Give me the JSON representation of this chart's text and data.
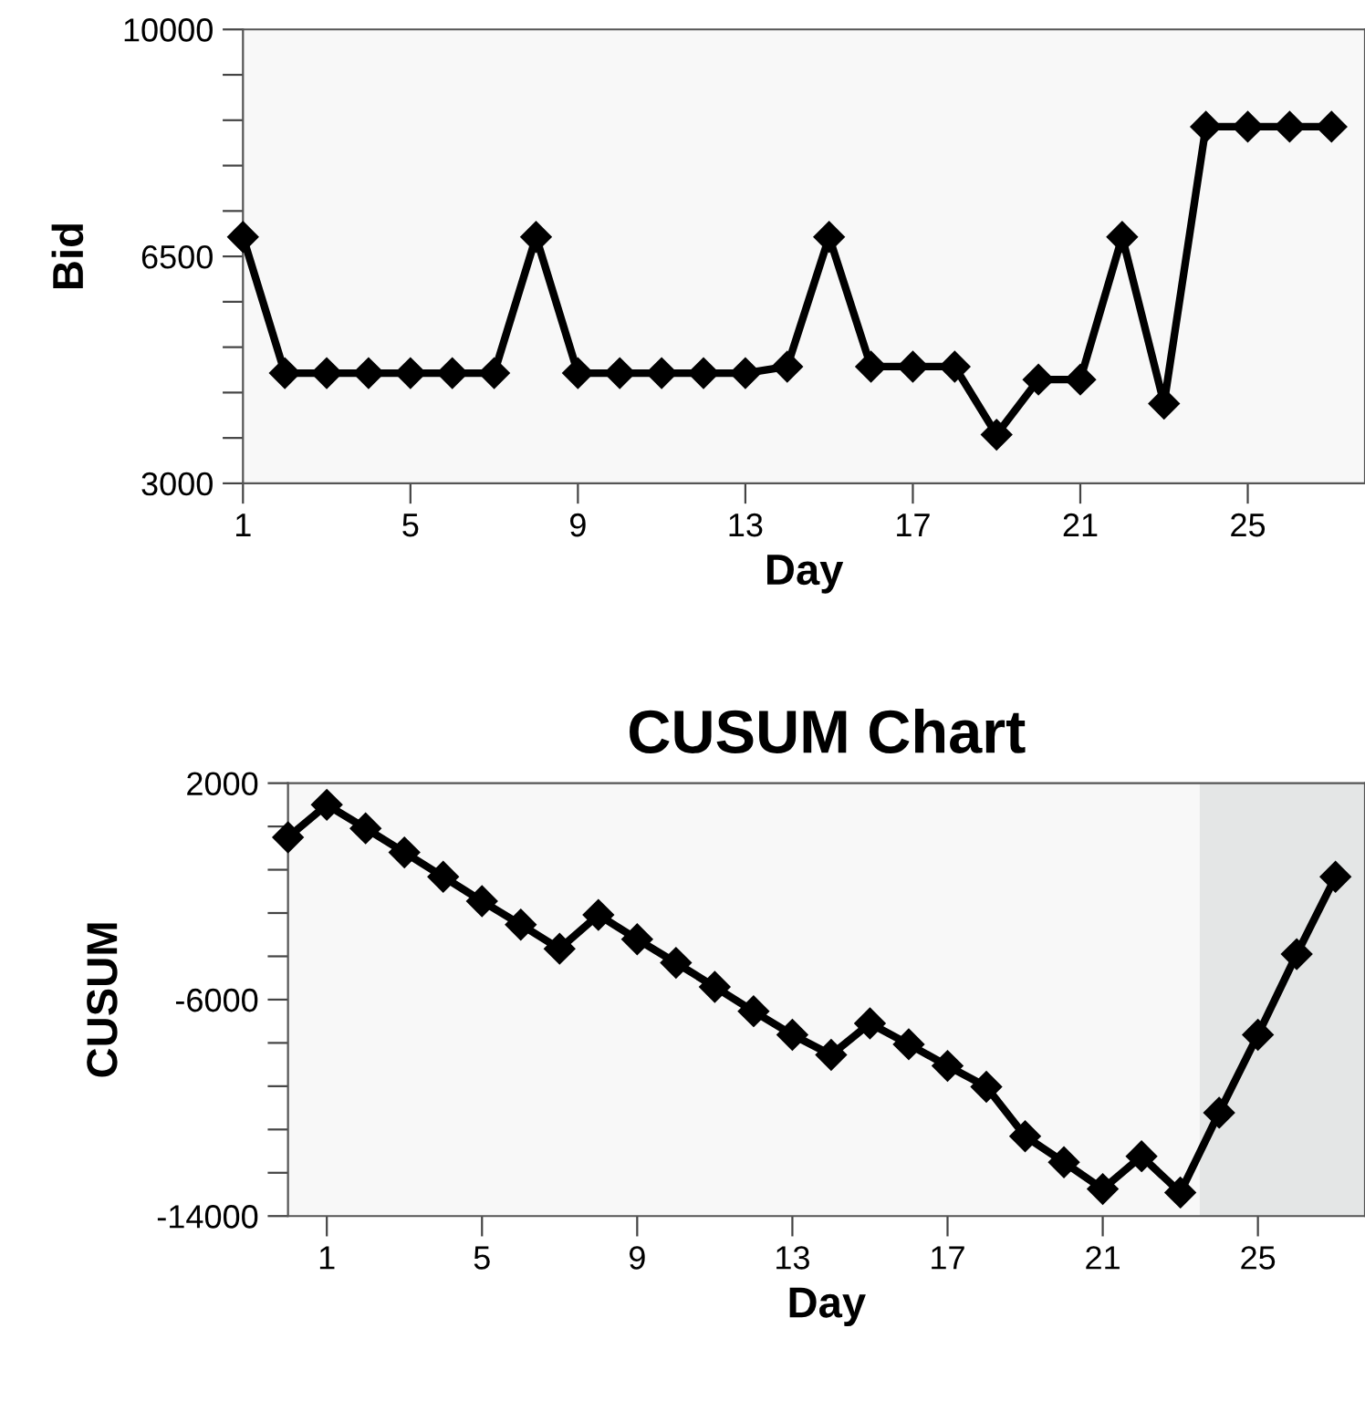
{
  "chart_data": [
    {
      "type": "line",
      "xlabel": "Day",
      "ylabel": "Bid",
      "x": [
        1,
        2,
        3,
        4,
        5,
        6,
        7,
        8,
        9,
        10,
        11,
        12,
        13,
        14,
        15,
        16,
        17,
        18,
        19,
        20,
        21,
        22,
        23,
        24,
        25,
        26,
        27
      ],
      "series": [
        {
          "color": "#000000",
          "values": [
            6800,
            4700,
            4700,
            4700,
            4700,
            4700,
            4700,
            6800,
            4700,
            4700,
            4700,
            4700,
            4700,
            4800,
            6800,
            4800,
            4800,
            4800,
            3750,
            4600,
            4600,
            6800,
            4230,
            8500,
            8500,
            8500,
            8500
          ]
        }
      ],
      "xlim": [
        1,
        27.8
      ],
      "xticks": [
        1,
        5,
        9,
        13,
        17,
        21,
        25
      ],
      "ylim": [
        3000,
        10000
      ],
      "yticks": [
        3000,
        {
          "value": 3700,
          "label": null
        },
        {
          "value": 4400,
          "label": null
        },
        {
          "value": 5100,
          "label": null
        },
        {
          "value": 5800,
          "label": null
        },
        6500,
        {
          "value": 7200,
          "label": null
        },
        {
          "value": 7900,
          "label": null
        },
        {
          "value": 8600,
          "label": null
        },
        {
          "value": 9300,
          "label": null
        },
        10000
      ],
      "marker": "diamond",
      "line_style": "solid",
      "grid": false,
      "legend": false
    },
    {
      "type": "line",
      "title": "CUSUM Chart",
      "xlabel": "Day",
      "ylabel": "CUSUM",
      "x": [
        0,
        1,
        2,
        3,
        4,
        5,
        6,
        7,
        8,
        9,
        10,
        11,
        12,
        13,
        14,
        15,
        16,
        17,
        18,
        19,
        20,
        21,
        22,
        23,
        24,
        25,
        26,
        27
      ],
      "series": [
        {
          "color": "#000000",
          "values": [
            0,
            1200,
            330,
            -560,
            -1460,
            -2360,
            -3230,
            -4120,
            -2870,
            -3770,
            -4640,
            -5530,
            -6430,
            -7300,
            -8040,
            -6880,
            -7650,
            -8450,
            -9220,
            -11050,
            -12010,
            -13000,
            -11790,
            -13130,
            -10180,
            -7300,
            -4320,
            -1460
          ]
        }
      ],
      "xlim": [
        0,
        27.76
      ],
      "xticks": [
        1,
        5,
        9,
        13,
        17,
        21,
        25
      ],
      "ylim": [
        -14000,
        2000
      ],
      "yticks": [
        -14000,
        {
          "value": -12400,
          "label": null
        },
        {
          "value": -10800,
          "label": null
        },
        {
          "value": -9200,
          "label": null
        },
        {
          "value": -7600,
          "label": null
        },
        -6000,
        {
          "value": -4400,
          "label": null
        },
        {
          "value": -2800,
          "label": null
        },
        {
          "value": -1200,
          "label": null
        },
        {
          "value": 400,
          "label": null
        },
        2000
      ],
      "bands": [
        {
          "axis": "x",
          "from": 23.5,
          "to": 27.76,
          "color": "#e4e6e6"
        }
      ],
      "marker": "diamond",
      "line_style": "solid",
      "grid": false,
      "legend": false
    }
  ]
}
